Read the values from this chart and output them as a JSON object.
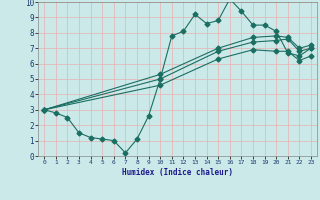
{
  "title": "",
  "xlabel": "Humidex (Indice chaleur)",
  "ylabel": "",
  "xlim": [
    -0.5,
    23.5
  ],
  "ylim": [
    0,
    10
  ],
  "xticks": [
    0,
    1,
    2,
    3,
    4,
    5,
    6,
    7,
    8,
    9,
    10,
    11,
    12,
    13,
    14,
    15,
    16,
    17,
    18,
    19,
    20,
    21,
    22,
    23
  ],
  "yticks": [
    0,
    1,
    2,
    3,
    4,
    5,
    6,
    7,
    8,
    9,
    10
  ],
  "background_color": "#cce9e9",
  "grid_color": "#e8b0b0",
  "line_color": "#1a6e62",
  "line1_x": [
    0,
    1,
    2,
    3,
    4,
    5,
    6,
    7,
    8,
    9,
    10,
    11,
    12,
    13,
    14,
    15,
    16,
    17,
    18,
    19,
    20,
    21,
    22,
    23
  ],
  "line1_y": [
    3.0,
    2.8,
    2.5,
    1.5,
    1.2,
    1.1,
    1.0,
    0.2,
    1.1,
    2.6,
    5.0,
    7.8,
    8.1,
    9.2,
    8.6,
    8.8,
    10.2,
    9.4,
    8.5,
    8.5,
    8.1,
    6.7,
    6.5,
    7.0
  ],
  "line2_x": [
    0,
    10,
    15,
    18,
    20,
    21,
    22,
    23
  ],
  "line2_y": [
    3.0,
    5.0,
    6.8,
    7.4,
    7.5,
    7.6,
    6.8,
    7.0
  ],
  "line3_x": [
    0,
    10,
    15,
    18,
    20,
    21,
    22,
    23
  ],
  "line3_y": [
    3.0,
    5.3,
    7.0,
    7.7,
    7.8,
    7.7,
    7.0,
    7.2
  ],
  "line4_x": [
    0,
    10,
    15,
    18,
    20,
    21,
    22,
    23
  ],
  "line4_y": [
    3.0,
    4.6,
    6.3,
    6.9,
    6.8,
    6.8,
    6.2,
    6.5
  ],
  "marker": "D",
  "markersize": 2.5,
  "linewidth": 0.8
}
